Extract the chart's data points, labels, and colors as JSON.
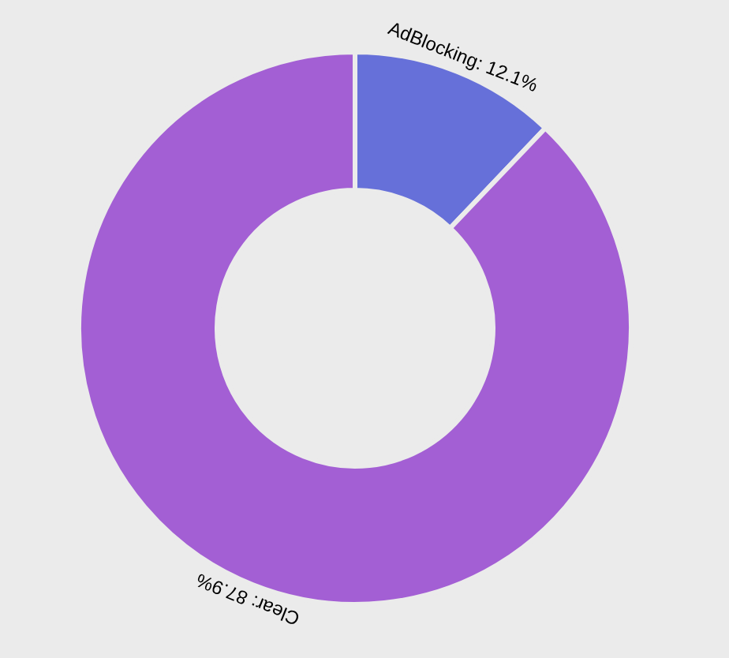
{
  "chart_data": {
    "type": "donut",
    "categories": [
      "AdBlocking",
      "Clear"
    ],
    "values": [
      12.1,
      87.9
    ],
    "colors": [
      "#6670d9",
      "#a35fd4"
    ],
    "value_labels": [
      "12.1%",
      "87.9%"
    ],
    "legend": false
  }
}
